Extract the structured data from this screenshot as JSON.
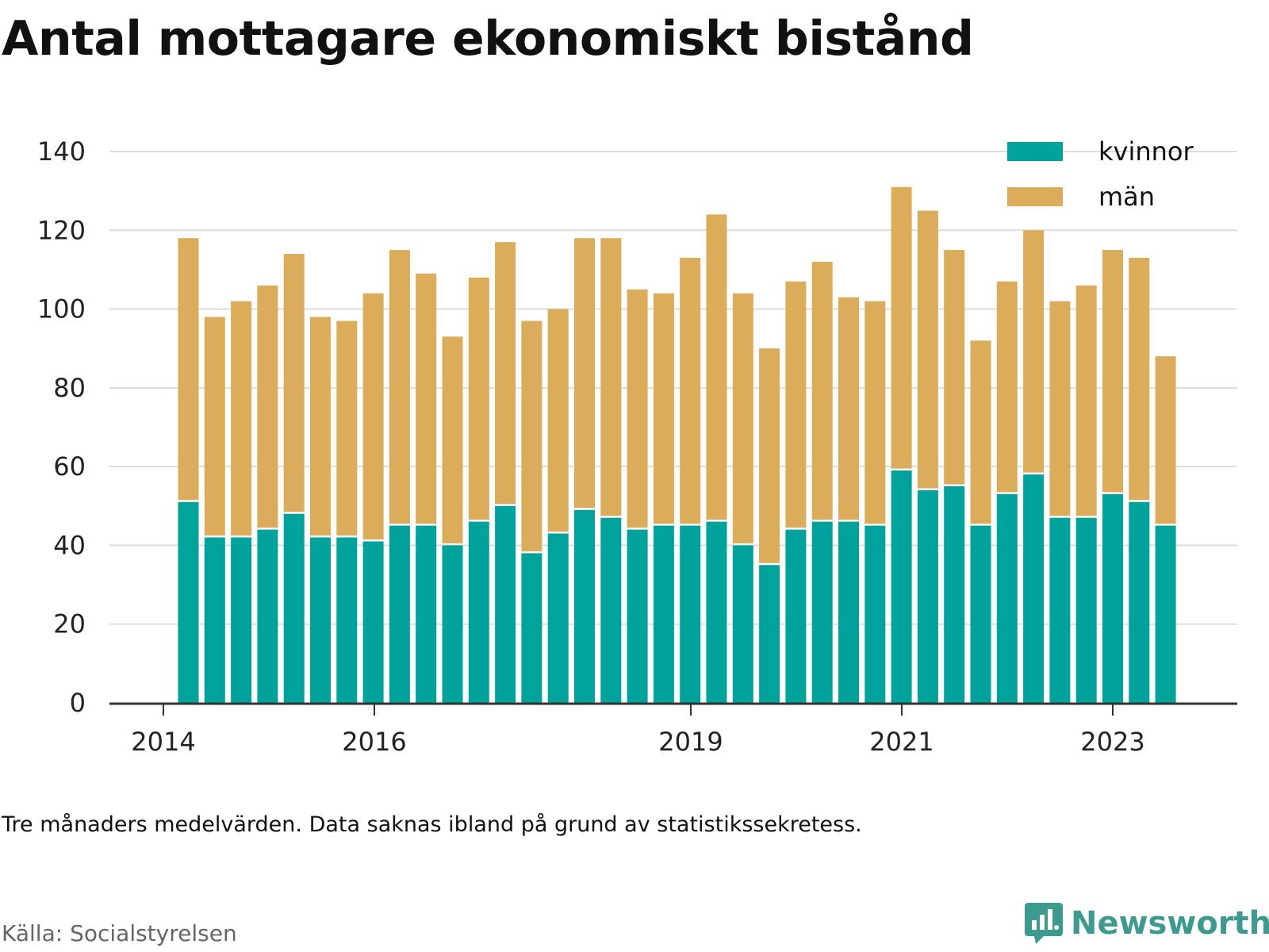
{
  "title": "Antal mottagare ekonomiskt bistånd",
  "note": "Tre månaders medelvärden. Data saknas ibland på grund av statistikssekretess.",
  "source": "Källa: Socialstyrelsen",
  "brand": {
    "name": "Newsworthy",
    "icon": "newsworthy-logo-icon"
  },
  "colors": {
    "kvinnor": "#00a39b",
    "man": "#dbac5a",
    "grid": "#dddddd",
    "axis": "#333333"
  },
  "chart_data": {
    "type": "bar",
    "stacked": true,
    "yticks": [
      0,
      20,
      40,
      60,
      80,
      100,
      120,
      140
    ],
    "ylim": [
      0,
      140
    ],
    "xticks": [
      "2014",
      "2016",
      "2019",
      "2021",
      "2023"
    ],
    "legend": {
      "placement": "top-right"
    },
    "grid": true,
    "series": [
      {
        "name": "kvinnor",
        "values": [
          51,
          42,
          42,
          44,
          48,
          42,
          42,
          41,
          45,
          45,
          40,
          46,
          50,
          38,
          43,
          49,
          47,
          44,
          45,
          45,
          46,
          40,
          35,
          44,
          46,
          46,
          45,
          59,
          54,
          55,
          45,
          53,
          58,
          47,
          47,
          53,
          51,
          45
        ]
      },
      {
        "name": "män",
        "values": [
          67,
          56,
          60,
          62,
          66,
          56,
          55,
          63,
          70,
          64,
          53,
          62,
          67,
          59,
          57,
          69,
          71,
          61,
          59,
          68,
          78,
          64,
          55,
          63,
          66,
          57,
          57,
          72,
          71,
          60,
          47,
          54,
          62,
          55,
          59,
          62,
          62,
          43
        ]
      }
    ]
  }
}
